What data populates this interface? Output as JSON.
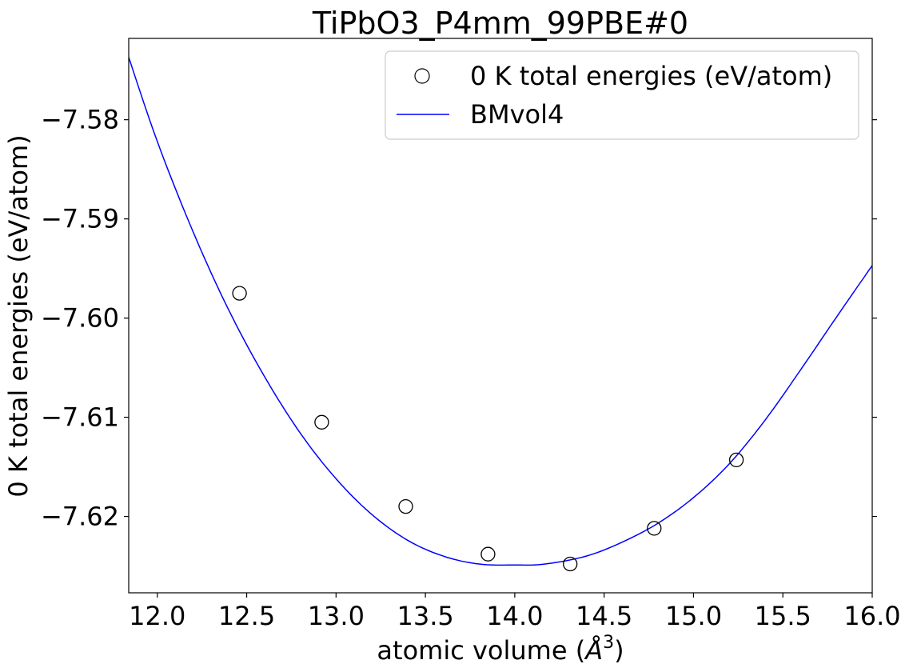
{
  "chart_data": {
    "type": "scatter",
    "title": "TiPbO3_P4mm_99PBE#0",
    "xlabel": "atomic volume (",
    "xlabel_unit": "Å",
    "xlabel_sup": "3",
    "xlabel_close": ")",
    "ylabel": "0 K total energies (eV/atom)",
    "xlim": [
      11.84,
      16.0
    ],
    "ylim": [
      -7.6277,
      -7.5718
    ],
    "x_ticks": [
      12.0,
      12.5,
      13.0,
      13.5,
      14.0,
      14.5,
      15.0,
      15.5,
      16.0
    ],
    "x_tick_labels": [
      "12.0",
      "12.5",
      "13.0",
      "13.5",
      "14.0",
      "14.5",
      "15.0",
      "15.5",
      "16.0"
    ],
    "y_ticks": [
      -7.58,
      -7.59,
      -7.6,
      -7.61,
      -7.62
    ],
    "y_tick_labels": [
      "−7.58",
      "−7.59",
      "−7.60",
      "−7.61",
      "−7.62"
    ],
    "grid": false,
    "legend_position": "top-right",
    "series": [
      {
        "name": "0 K total energies (eV/atom)",
        "kind": "scatter",
        "marker": "open-circle",
        "color": "#000000",
        "x": [
          12.46,
          12.92,
          13.39,
          13.85,
          14.31,
          14.78,
          15.24
        ],
        "y": [
          -7.5975,
          -7.6105,
          -7.619,
          -7.6238,
          -7.6248,
          -7.6212,
          -7.6143
        ]
      },
      {
        "name": "BMvol4",
        "kind": "line",
        "color": "#0000ff",
        "x": [
          11.84,
          12.0,
          12.2,
          12.4,
          12.6,
          12.8,
          13.0,
          13.2,
          13.4,
          13.6,
          13.8,
          14.0,
          14.17,
          14.4,
          14.6,
          14.8,
          15.0,
          15.2,
          15.4,
          15.6,
          15.8,
          16.0
        ],
        "y": [
          -7.5737,
          -7.5822,
          -7.5913,
          -7.5992,
          -7.6059,
          -7.6116,
          -7.6162,
          -7.6198,
          -7.6224,
          -7.624,
          -7.6248,
          -7.6249,
          -7.6248,
          -7.624,
          -7.6226,
          -7.6207,
          -7.6181,
          -7.6147,
          -7.6103,
          -7.6052,
          -7.5999,
          -7.5947
        ]
      }
    ]
  }
}
